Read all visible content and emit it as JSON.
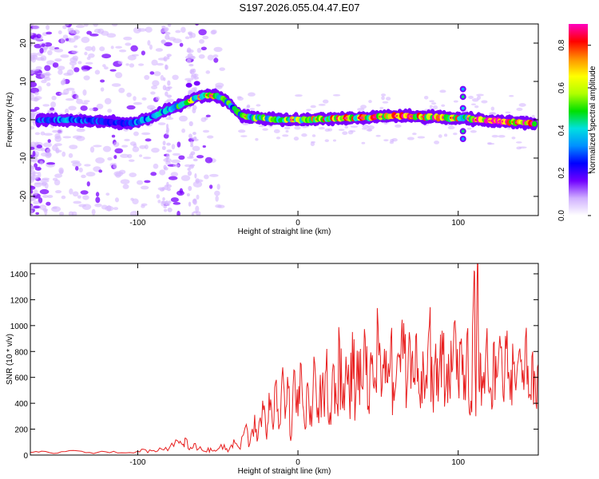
{
  "title": "S197.2026.055.04.47.E07",
  "colors": {
    "line": "#e82020",
    "frame": "#000000",
    "background": "#ffffff",
    "blob_strong": "#7a00ff",
    "blob_faint": "#d6b8ff"
  },
  "chart_data": [
    {
      "type": "heatmap",
      "name": "spectrogram",
      "xlabel": "Height of straight line (km)",
      "ylabel": "Frequency (Hz)",
      "xlim": [
        -167,
        150
      ],
      "ylim": [
        -25,
        25
      ],
      "xticks": [
        -100,
        0,
        100
      ],
      "xtick_labels": [
        "-100",
        "0",
        "100"
      ],
      "yticks": [
        -20,
        -10,
        0,
        10,
        20
      ],
      "ytick_labels": [
        "-20",
        "-10",
        "0",
        "10",
        "20"
      ],
      "ridge": {
        "x": [
          -160,
          -140,
          -120,
          -105,
          -95,
          -85,
          -75,
          -65,
          -57,
          -50,
          -45,
          -40,
          -35,
          -25,
          -10,
          0,
          20,
          40,
          60,
          80,
          95,
          100,
          105,
          110,
          130,
          148
        ],
        "y": [
          0,
          0,
          -0.5,
          -1,
          0,
          2,
          3.5,
          5.5,
          6.5,
          6,
          5,
          3,
          1,
          0.5,
          0,
          0,
          0.3,
          0.5,
          1,
          0.8,
          0.5,
          0.5,
          0.5,
          0,
          -0.5,
          -1
        ],
        "amplitude": [
          0.3,
          0.35,
          0.25,
          0.3,
          0.35,
          0.4,
          0.5,
          0.6,
          0.7,
          0.6,
          0.5,
          0.45,
          0.5,
          0.55,
          0.6,
          0.65,
          0.7,
          0.75,
          0.8,
          0.8,
          0.75,
          0.7,
          0.6,
          0.9,
          0.85,
          0.8
        ]
      },
      "colorbar": {
        "label": "Normalized spectral amplitude",
        "range": [
          0.0,
          0.9
        ],
        "ticks": [
          0.0,
          0.2,
          0.4,
          0.6,
          0.8
        ],
        "tick_labels": [
          "0.0",
          "0.2",
          "0.4",
          "0.6",
          "0.8"
        ],
        "colors": [
          "#ffffff",
          "#d0b0ff",
          "#7000ff",
          "#0000ff",
          "#0090ff",
          "#00e0e0",
          "#00e000",
          "#b0ff00",
          "#ffff00",
          "#ff9000",
          "#ff0000",
          "#ff00c0"
        ]
      }
    },
    {
      "type": "line",
      "name": "snr",
      "xlabel": "Height of straight line (km)",
      "ylabel": "SNR (10 * v/v)",
      "xlim": [
        -167,
        150
      ],
      "ylim": [
        0,
        1480
      ],
      "xticks": [
        -100,
        0,
        100
      ],
      "xtick_labels": [
        "-100",
        "0",
        "100"
      ],
      "yticks": [
        0,
        200,
        400,
        600,
        800,
        1000,
        1200,
        1400
      ],
      "ytick_labels": [
        "0",
        "200",
        "400",
        "600",
        "800",
        "1000",
        "1200",
        "1400"
      ],
      "series": [
        {
          "name": "SNR",
          "x": [
            -167,
            -160,
            -150,
            -140,
            -130,
            -120,
            -110,
            -100,
            -95,
            -90,
            -85,
            -80,
            -75,
            -72,
            -70,
            -67,
            -64,
            -60,
            -56,
            -53,
            -50,
            -46,
            -43,
            -40,
            -37,
            -33,
            -30,
            -27,
            -25,
            -22,
            -20,
            -18,
            -16,
            -14,
            -12,
            -10,
            -8,
            -6,
            -4,
            -2,
            0,
            2,
            4,
            6,
            8,
            10,
            12,
            14,
            16,
            18,
            20,
            22,
            24,
            26,
            28,
            30,
            32,
            34,
            36,
            38,
            40,
            42,
            44,
            46,
            48,
            50,
            52,
            54,
            56,
            58,
            60,
            62,
            64,
            66,
            68,
            70,
            72,
            74,
            76,
            78,
            80,
            82,
            84,
            86,
            88,
            90,
            92,
            94,
            96,
            98,
            100,
            102,
            104,
            106,
            108,
            110,
            111,
            112,
            113,
            114,
            116,
            118,
            120,
            122,
            124,
            126,
            128,
            130,
            132,
            134,
            136,
            138,
            140,
            142,
            144,
            146,
            148,
            150
          ],
          "y": [
            20,
            30,
            15,
            35,
            20,
            25,
            18,
            30,
            40,
            35,
            45,
            60,
            110,
            80,
            130,
            60,
            90,
            40,
            55,
            30,
            45,
            80,
            40,
            120,
            60,
            210,
            90,
            310,
            130,
            420,
            180,
            480,
            250,
            560,
            200,
            600,
            280,
            520,
            150,
            650,
            300,
            700,
            250,
            560,
            380,
            760,
            290,
            620,
            450,
            820,
            330,
            700,
            400,
            880,
            360,
            760,
            470,
            950,
            420,
            800,
            520,
            900,
            380,
            700,
            600,
            1000,
            450,
            820,
            560,
            900,
            420,
            760,
            640,
            1020,
            500,
            880,
            560,
            940,
            460,
            800,
            620,
            1000,
            520,
            860,
            600,
            960,
            480,
            780,
            640,
            1040,
            560,
            900,
            620,
            980,
            420,
            1420,
            300,
            1490,
            520,
            780,
            640,
            980,
            520,
            860,
            600,
            920,
            460,
            820,
            580,
            860,
            500,
            800,
            560,
            900,
            440,
            760,
            600,
            700
          ]
        }
      ]
    }
  ]
}
